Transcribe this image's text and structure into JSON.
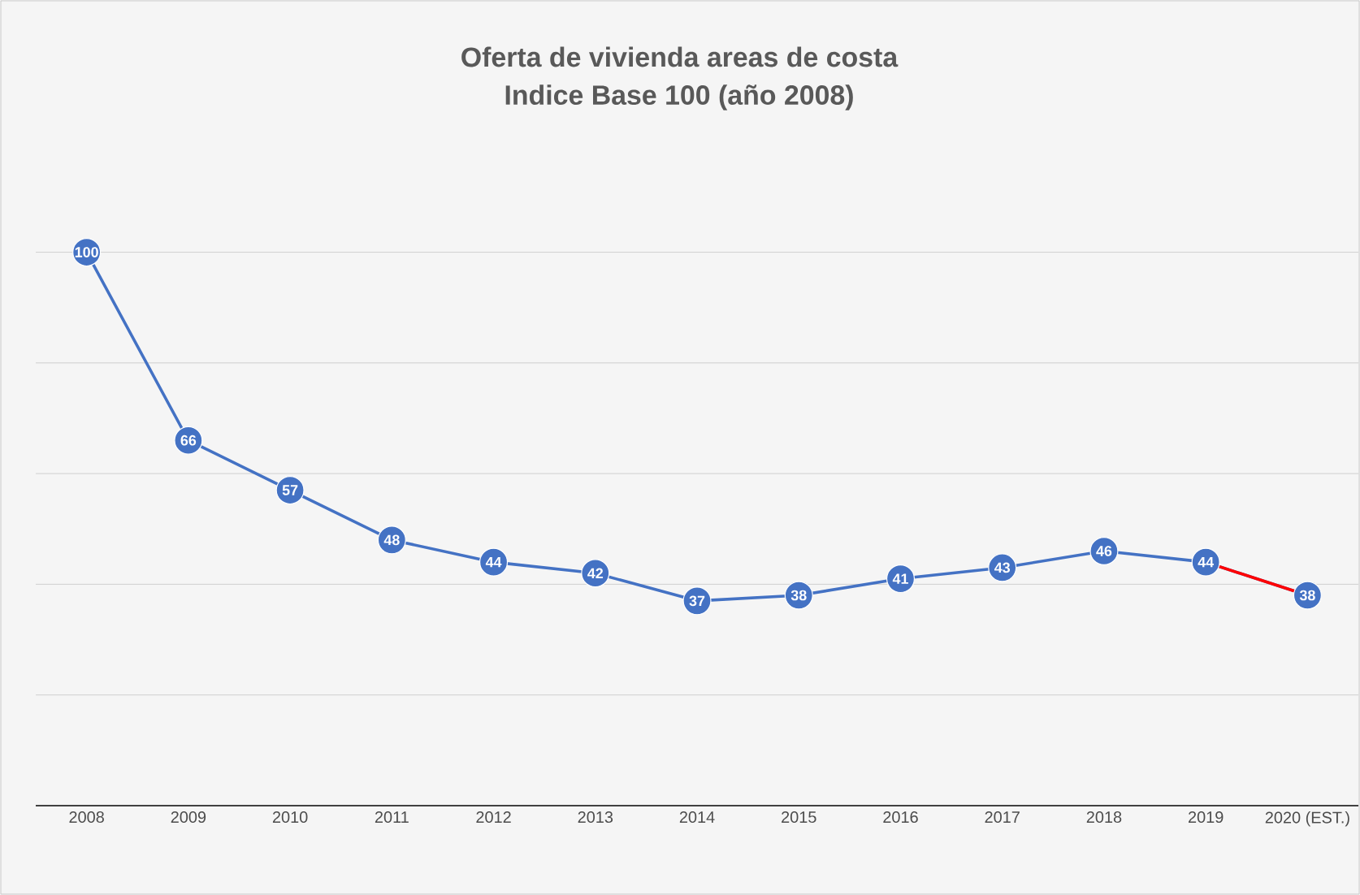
{
  "chart_data": {
    "type": "line",
    "title": "Oferta de vivienda  areas de costa",
    "subtitle": "Indice Base 100 (año 2008)",
    "categories": [
      "2008",
      "2009",
      "2010",
      "2011",
      "2012",
      "2013",
      "2014",
      "2015",
      "2016",
      "2017",
      "2018",
      "2019",
      "2020 (EST.)"
    ],
    "series": [
      {
        "color": "#4472c4",
        "values": [
          100,
          66,
          57,
          48,
          44,
          42,
          37,
          38,
          41,
          43,
          46,
          44,
          38
        ]
      },
      {
        "color": "#ff0000",
        "values": [
          null,
          null,
          null,
          null,
          null,
          null,
          null,
          null,
          null,
          null,
          null,
          44,
          38
        ],
        "marker": "none",
        "value_labels": [
          null,
          null,
          null,
          null,
          null,
          null,
          null,
          null,
          null,
          null,
          null,
          null,
          null
        ]
      }
    ],
    "yticks": [
      {
        "value": 0,
        "label": null
      },
      {
        "value": 20,
        "label": null
      },
      {
        "value": 40,
        "label": null
      },
      {
        "value": 60,
        "label": null
      },
      {
        "value": 80,
        "label": null
      },
      {
        "value": 100,
        "label": null
      }
    ],
    "grid": "y",
    "marker": "circle",
    "data_labels": true
  }
}
